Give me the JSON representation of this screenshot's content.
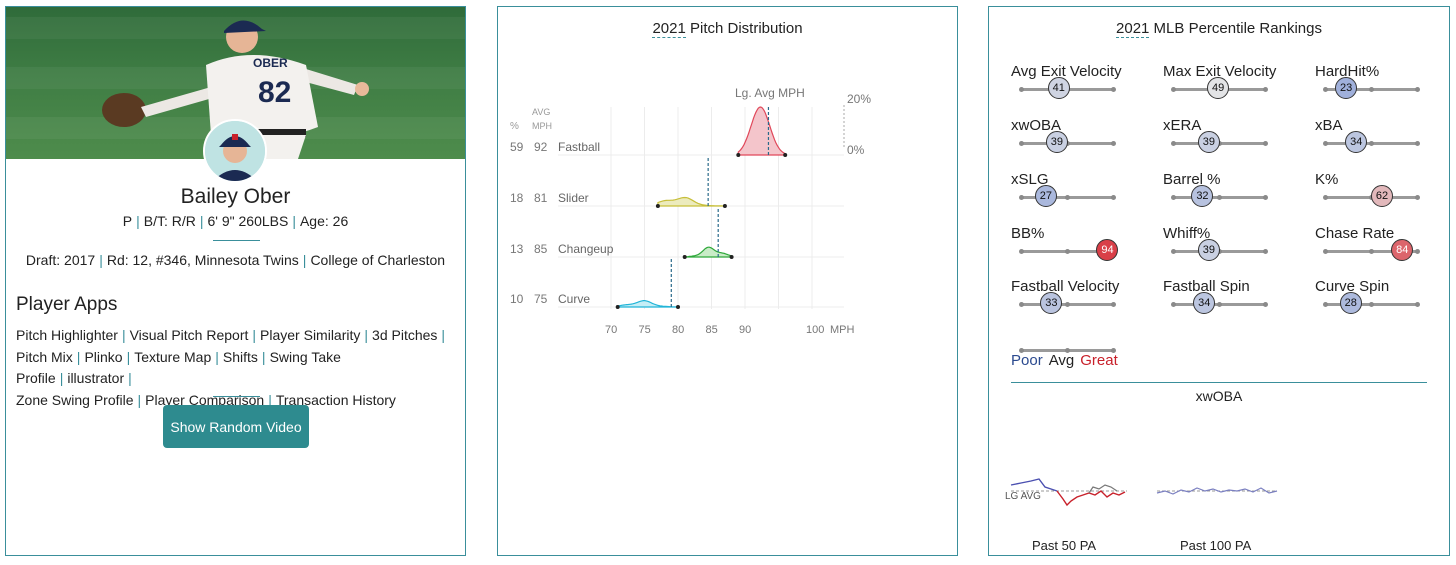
{
  "player_card": {
    "name": "Bailey Ober",
    "position": "P",
    "bats_throws": "B/T: R/R",
    "size": "6' 9\" 260LBS",
    "age": "Age: 26",
    "draft_label": "Draft:",
    "draft_year": "2017",
    "draft_pick": "Rd: 12, #346,",
    "draft_team": "Minnesota Twins",
    "school": "College of Charleston",
    "apps_title": "Player Apps",
    "apps": [
      "Pitch Highlighter",
      "Visual Pitch Report",
      "Player Similarity",
      "3d Pitches",
      "Pitch Mix",
      "Plinko",
      "Texture Map",
      "Shifts",
      "Swing Take Profile",
      "illustrator",
      "Zone Swing Profile",
      "Player Comparison",
      "Transaction History"
    ],
    "random_video_button": "Show Random Video",
    "jersey_name": "OBER",
    "jersey_number": "82"
  },
  "pitch_distribution": {
    "title_year": "2021",
    "title_rest": " Pitch Distribution",
    "header_pct": "%",
    "header_avg": "AVG",
    "header_mph": "MPH",
    "lg_avg_label": "Lg. Avg MPH",
    "scale_top": "20%",
    "scale_bottom": "0%",
    "x_unit": "MPH",
    "x_ticks": [
      70,
      75,
      80,
      85,
      90,
      100
    ],
    "pitches": [
      {
        "pct": "59",
        "mph": "92",
        "name": "Fastball",
        "color": "#e0485a",
        "fill": "#f4c5cb",
        "lo": 89,
        "hi": 96,
        "mean": 92.3,
        "lg_avg": 93.5,
        "peak": 1.0
      },
      {
        "pct": "18",
        "mph": "81",
        "name": "Slider",
        "color": "#c7bf3a",
        "fill": "#ecebbd",
        "lo": 77,
        "hi": 87,
        "mean": 80,
        "lg_avg": 84.5,
        "peak": 0.22
      },
      {
        "pct": "13",
        "mph": "85",
        "name": "Changeup",
        "color": "#2ea83a",
        "fill": "#c9ecc7",
        "lo": 81,
        "hi": 88,
        "mean": 85,
        "lg_avg": 86,
        "peak": 0.22
      },
      {
        "pct": "10",
        "mph": "75",
        "name": "Curve",
        "color": "#22b5d8",
        "fill": "#c6eef6",
        "lo": 71,
        "hi": 80,
        "mean": 74.5,
        "lg_avg": 79,
        "peak": 0.14
      }
    ]
  },
  "percentiles": {
    "title_year": "2021",
    "title_rest": " MLB Percentile Rankings",
    "items": [
      {
        "label": "Avg Exit Velocity",
        "value": 41
      },
      {
        "label": "Max Exit Velocity",
        "value": 49
      },
      {
        "label": "HardHit%",
        "value": 23
      },
      {
        "label": "xwOBA",
        "value": 39
      },
      {
        "label": "xERA",
        "value": 39
      },
      {
        "label": "xBA",
        "value": 34
      },
      {
        "label": "xSLG",
        "value": 27
      },
      {
        "label": "Barrel %",
        "value": 32
      },
      {
        "label": "K%",
        "value": 62
      },
      {
        "label": "BB%",
        "value": 94
      },
      {
        "label": "Whiff%",
        "value": 39
      },
      {
        "label": "Chase Rate",
        "value": 84
      },
      {
        "label": "Fastball Velocity",
        "value": 33
      },
      {
        "label": "Fastball Spin",
        "value": 34
      },
      {
        "label": "Curve Spin",
        "value": 28
      }
    ],
    "legend": {
      "poor": "Poor",
      "avg": "Avg",
      "great": "Great"
    },
    "colors": {
      "poor": "#2b4a8f",
      "great": "#c8202a"
    },
    "xwoba_title": "xwOBA",
    "lg_avg_label": "LG AVG",
    "spark_50_label": "Past 50 PA",
    "spark_100_label": "Past 100 PA"
  }
}
